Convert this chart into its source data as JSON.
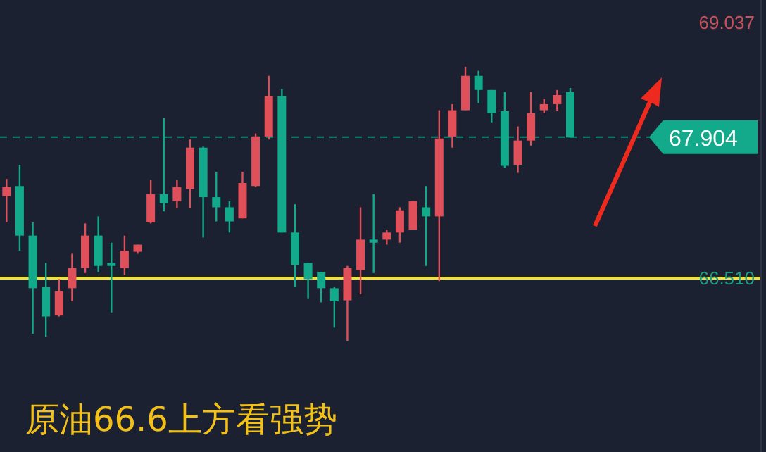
{
  "chart_data": {
    "type": "candlestick",
    "title": "原油66.6上方看强势",
    "categories": [
      null,
      null,
      null,
      null,
      null,
      null,
      null,
      null,
      null,
      null,
      null,
      null,
      null,
      null,
      null,
      null,
      null,
      null,
      null,
      null,
      null,
      null,
      null,
      null,
      null,
      null,
      null,
      null,
      null,
      null,
      null,
      null,
      null,
      null,
      null,
      null,
      null,
      null,
      null,
      null,
      null,
      null,
      null,
      null,
      null,
      null,
      null,
      null,
      null,
      null,
      null,
      null,
      null,
      null,
      null,
      null,
      null,
      null
    ],
    "ohlc": [
      [
        67.32,
        67.49,
        67.06,
        67.41
      ],
      [
        67.42,
        67.63,
        66.78,
        66.93
      ],
      [
        66.93,
        67.06,
        65.96,
        66.41
      ],
      [
        66.42,
        66.66,
        65.93,
        66.13
      ],
      [
        66.14,
        66.5,
        66.13,
        66.38
      ],
      [
        66.41,
        66.75,
        66.28,
        66.61
      ],
      [
        66.61,
        67.05,
        66.56,
        66.93
      ],
      [
        66.93,
        67.12,
        66.57,
        66.63
      ],
      [
        66.66,
        66.86,
        66.17,
        66.63
      ],
      [
        66.61,
        66.93,
        66.54,
        66.78
      ],
      [
        66.77,
        66.84,
        66.75,
        66.84
      ],
      [
        67.06,
        67.48,
        67.05,
        67.34
      ],
      [
        67.34,
        68.09,
        67.17,
        67.25
      ],
      [
        67.27,
        67.48,
        67.2,
        67.41
      ],
      [
        67.39,
        67.88,
        67.2,
        67.8
      ],
      [
        67.8,
        67.81,
        66.91,
        67.31
      ],
      [
        67.31,
        67.56,
        67.07,
        67.21
      ],
      [
        67.21,
        67.27,
        66.96,
        67.07
      ],
      [
        67.1,
        67.56,
        67.1,
        67.45
      ],
      [
        67.42,
        67.94,
        67.41,
        67.91
      ],
      [
        67.91,
        68.51,
        67.88,
        68.31
      ],
      [
        68.31,
        68.38,
        66.96,
        66.96
      ],
      [
        66.96,
        67.24,
        66.42,
        66.64
      ],
      [
        66.66,
        66.66,
        66.31,
        66.5
      ],
      [
        66.57,
        66.57,
        66.27,
        66.41
      ],
      [
        66.41,
        66.42,
        66.02,
        66.28
      ],
      [
        66.29,
        66.63,
        65.89,
        66.61
      ],
      [
        66.59,
        67.21,
        66.35,
        66.89
      ],
      [
        66.89,
        67.34,
        66.56,
        66.86
      ],
      [
        66.89,
        66.99,
        66.84,
        66.96
      ],
      [
        66.96,
        67.21,
        66.86,
        67.18
      ],
      [
        66.99,
        67.27,
        66.99,
        67.27
      ],
      [
        67.21,
        67.42,
        66.63,
        67.12
      ],
      [
        67.12,
        68.17,
        66.48,
        67.89
      ],
      [
        67.91,
        68.23,
        67.8,
        68.17
      ],
      [
        68.17,
        68.6,
        68.17,
        68.51
      ],
      [
        68.51,
        68.56,
        68.24,
        68.37
      ],
      [
        68.37,
        68.37,
        68.05,
        68.14
      ],
      [
        68.16,
        68.35,
        67.6,
        67.62
      ],
      [
        67.63,
        68.01,
        67.55,
        67.87
      ],
      [
        67.87,
        68.35,
        67.82,
        68.14
      ],
      [
        68.17,
        68.28,
        68.14,
        68.23
      ],
      [
        68.23,
        68.37,
        68.16,
        68.32
      ],
      [
        68.35,
        68.39,
        67.9,
        67.9
      ],
      null,
      null,
      null,
      null,
      null,
      null,
      null,
      null,
      null,
      null,
      null,
      null,
      null,
      null
    ],
    "colors": [
      "#e0505a",
      "#13a98b",
      "#13a98b",
      "#13a98b",
      "#e0505a",
      "#e0505a",
      "#e0505a",
      "#13a98b",
      "#13a98b",
      "#e0505a",
      "#e0505a",
      "#e0505a",
      "#13a98b",
      "#e0505a",
      "#e0505a",
      "#13a98b",
      "#13a98b",
      "#13a98b",
      "#e0505a",
      "#e0505a",
      "#e0505a",
      "#13a98b",
      "#13a98b",
      "#13a98b",
      "#13a98b",
      "#13a98b",
      "#e0505a",
      "#e0505a",
      "#13a98b",
      "#e0505a",
      "#e0505a",
      "#e0505a",
      "#13a98b",
      "#e0505a",
      "#e0505a",
      "#e0505a",
      "#13a98b",
      "#13a98b",
      "#13a98b",
      "#e0505a",
      "#e0505a",
      "#e0505a",
      "#e0505a",
      "#13a98b",
      null,
      null,
      null,
      null,
      null,
      null,
      null,
      null,
      null,
      null,
      null,
      null,
      null,
      null
    ],
    "ylim": [
      64.79,
      69.26
    ],
    "yticks": [
      69.037,
      {
        "value": 66.51,
        "label": "66.510"
      }
    ],
    "tick_labels": "y",
    "ref_lines": [
      {
        "axis": "y",
        "value": 66.51,
        "color": "#f0e23a",
        "line_style": "solid"
      },
      {
        "axis": "y",
        "value": 67.904,
        "label": "67.904",
        "color": "#13a98b",
        "line_style": "dashed"
      }
    ]
  }
}
